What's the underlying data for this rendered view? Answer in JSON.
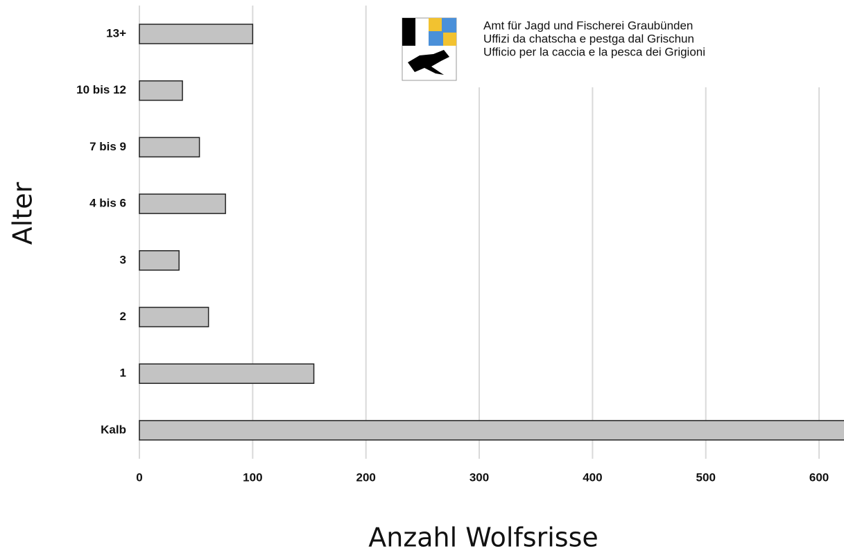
{
  "chart_data": {
    "type": "barh",
    "categories": [
      "13+",
      "10 bis 12",
      "7 bis 9",
      "4 bis 6",
      "3",
      "2",
      "1",
      "Kalb"
    ],
    "values": [
      100,
      38,
      53,
      76,
      35,
      61,
      154,
      650
    ],
    "color": "#c3c3c3",
    "xlim": [
      0,
      622
    ],
    "xticks": [
      0,
      100,
      200,
      300,
      400,
      500,
      600
    ],
    "grid": true,
    "xlabel": "Anzahl Wolfsrisse",
    "ylabel": "Alter",
    "logo_text": [
      "Amt für Jagd und Fischerei Graubünden",
      "Uffizi da chatscha e pestga dal Grischun",
      "Ufficio per la caccia e la pesca dei Grigioni"
    ]
  }
}
